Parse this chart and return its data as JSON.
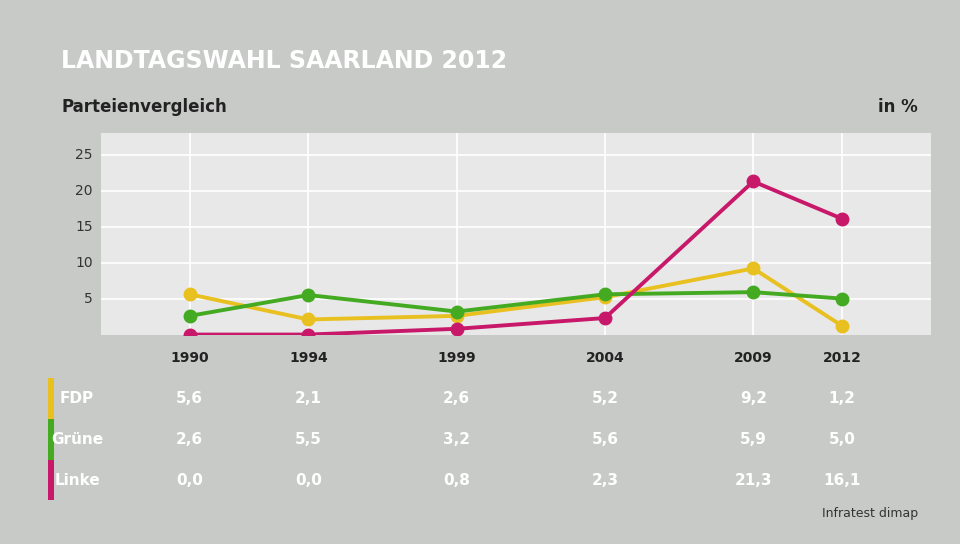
{
  "title": "LANDTAGSWAHL SAARLAND 2012",
  "subtitle": "Parteienvergleich",
  "subtitle_right": "in %",
  "title_bg": "#1a3a7a",
  "subtitle_bg": "#ffffff",
  "chart_bg": "#e8e8e8",
  "table_bg": "#3a6db5",
  "table_header_bg": "#ffffff",
  "years": [
    1990,
    1994,
    1999,
    2004,
    2009,
    2012
  ],
  "series": [
    {
      "name": "FDP",
      "color": "#e8c020",
      "values": [
        5.6,
        2.1,
        2.6,
        5.2,
        9.2,
        1.2
      ],
      "display_values": [
        "5,6",
        "2,1",
        "2,6",
        "5,2",
        "9,2",
        "1,2"
      ]
    },
    {
      "name": "Grüne",
      "color": "#44aa22",
      "values": [
        2.6,
        5.5,
        3.2,
        5.6,
        5.9,
        5.0
      ],
      "display_values": [
        "2,6",
        "5,5",
        "3,2",
        "5,6",
        "5,9",
        "5,0"
      ]
    },
    {
      "name": "Linke",
      "color": "#c8186a",
      "values": [
        0.0,
        0.0,
        0.8,
        2.3,
        21.3,
        16.1
      ],
      "display_values": [
        "0,0",
        "0,0",
        "0,8",
        "2,3",
        "21,3",
        "16,1"
      ]
    }
  ],
  "yticks": [
    5,
    10,
    15,
    20,
    25
  ],
  "ylim": [
    0,
    28
  ],
  "source": "Infratest dimap",
  "bg_outer": "#c8cac8",
  "line_width": 2.8,
  "marker_size": 9
}
